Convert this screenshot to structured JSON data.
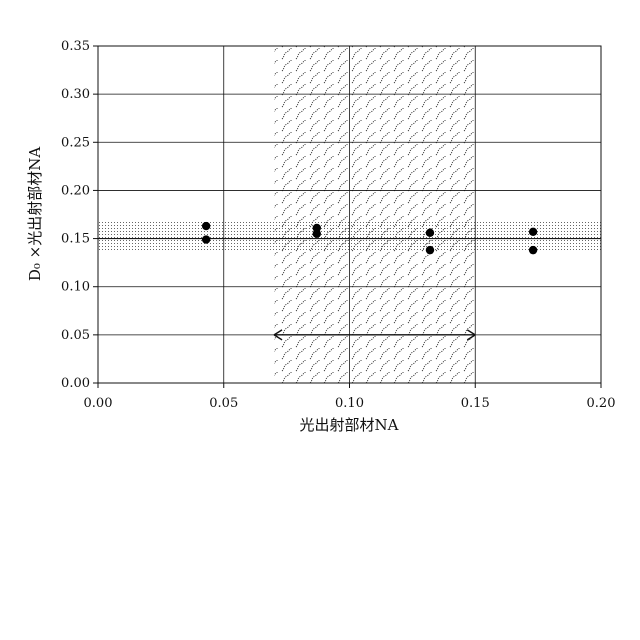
{
  "chart_data": {
    "type": "scatter",
    "xlabel": "光出射部材NA",
    "ylabel": "D₀ ×光出射部材NA",
    "xlim": [
      0.0,
      0.2
    ],
    "ylim": [
      0.0,
      0.35
    ],
    "x_ticks": [
      "0.00",
      "0.05",
      "0.10",
      "0.15",
      "0.20"
    ],
    "y_ticks": [
      "0.00",
      "0.05",
      "0.10",
      "0.15",
      "0.20",
      "0.25",
      "0.30",
      "0.35"
    ],
    "grid": true,
    "points": [
      {
        "x": 0.043,
        "y": 0.163
      },
      {
        "x": 0.043,
        "y": 0.149
      },
      {
        "x": 0.087,
        "y": 0.161
      },
      {
        "x": 0.087,
        "y": 0.155
      },
      {
        "x": 0.132,
        "y": 0.156
      },
      {
        "x": 0.132,
        "y": 0.138
      },
      {
        "x": 0.173,
        "y": 0.157
      },
      {
        "x": 0.173,
        "y": 0.138
      }
    ],
    "trend_line": {
      "y": 0.15
    },
    "shaded_band": {
      "y_from": 0.137,
      "y_to": 0.168,
      "pattern": "dots"
    },
    "shaded_region": {
      "x_from": 0.07,
      "x_to": 0.15,
      "pattern": "wavy-hatch"
    },
    "range_arrow": {
      "x_from": 0.07,
      "x_to": 0.15,
      "y": 0.05
    }
  }
}
